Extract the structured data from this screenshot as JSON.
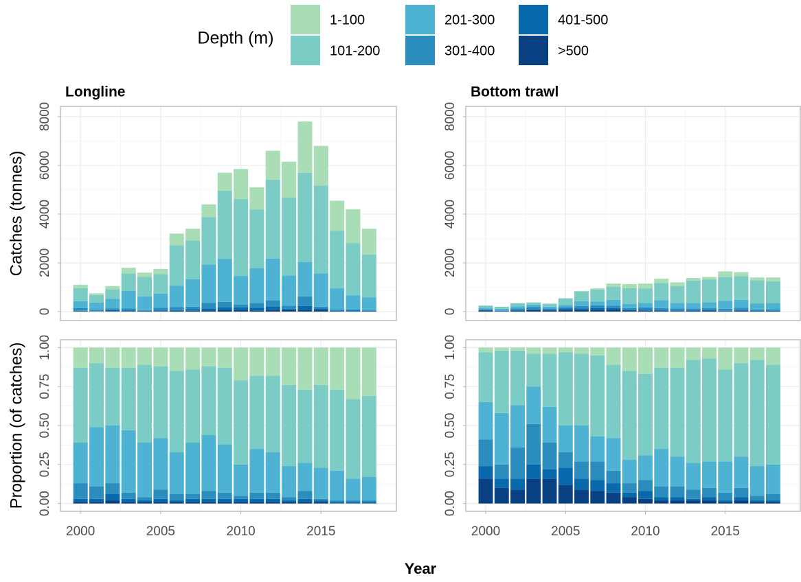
{
  "chart_data": {
    "type": "bar",
    "stacked": true,
    "legend_title": "Depth (m)",
    "x_label": "Year",
    "x": [
      2000,
      2001,
      2002,
      2003,
      2004,
      2005,
      2006,
      2007,
      2008,
      2009,
      2010,
      2011,
      2012,
      2013,
      2014,
      2015,
      2016,
      2017,
      2018
    ],
    "xlim": [
      1998.75,
      2019.7
    ],
    "xticks": [
      2000,
      2005,
      2010,
      2015
    ],
    "grid": true,
    "series": [
      {
        "name": "1-100",
        "color": "#a8ddb5"
      },
      {
        "name": "101-200",
        "color": "#7bccc4"
      },
      {
        "name": "201-300",
        "color": "#4eb3d3"
      },
      {
        "name": "301-400",
        "color": "#2b8cbe"
      },
      {
        "name": "401-500",
        "color": "#0868ac"
      },
      {
        "name": ">500",
        "color": "#084081"
      }
    ],
    "facets": [
      {
        "title": "Longline"
      },
      {
        "title": "Bottom trawl"
      }
    ],
    "rows": [
      {
        "y_label": "Catches (tonnes)",
        "ylim": [
          -366,
          8420
        ],
        "yticks": [
          0,
          2000,
          4000,
          6000,
          8000
        ],
        "values": [
          [
            [
              143,
              75,
              137,
              234,
              176,
              210,
              480,
              476,
              528,
              741,
              1229,
              918,
              1188,
              1476,
              2106,
              1632,
              1229,
              1386,
              1054
            ],
            [
              528,
              308,
              388,
              720,
              800,
              805,
              1664,
              1598,
              1936,
              2793,
              3159,
              2397,
              3234,
              3198,
              3666,
              3604,
              2366,
              2142,
              1768
            ],
            [
              286,
              285,
              388,
              720,
              560,
              578,
              864,
              1122,
              1584,
              1767,
              1170,
              1428,
              1716,
              1230,
              1404,
              1360,
              864,
              588,
              510
            ],
            [
              110,
              60,
              74,
              72,
              32,
              105,
              128,
              102,
              220,
              228,
              117,
              204,
              264,
              123,
              390,
              68,
              46,
              42,
              34
            ],
            [
              22,
              15,
              42,
              36,
              16,
              35,
              32,
              68,
              88,
              114,
              117,
              102,
              132,
              62,
              156,
              68,
              45,
              42,
              34
            ],
            [
              11,
              7,
              21,
              18,
              16,
              17,
              32,
              34,
              44,
              57,
              58,
              51,
              66,
              61,
              78,
              68,
              0,
              0,
              0
            ]
          ],
          [
            [
              8,
              4,
              7,
              15,
              13,
              16,
              34,
              48,
              126,
              170,
              196,
              176,
              156,
              110,
              99,
              231,
              162,
              112,
              154
            ],
            [
              80,
              80,
              122,
              80,
              112,
              259,
              391,
              494,
              541,
              644,
              598,
              702,
              684,
              911,
              937,
              973,
              972,
              952,
              896
            ],
            [
              60,
              66,
              95,
              91,
              76,
              94,
              196,
              152,
              241,
              170,
              184,
              324,
              228,
              235,
              241,
              330,
              324,
              266,
              266
            ],
            [
              42,
              18,
              70,
              99,
              56,
              55,
              93,
              114,
              92,
              68,
              80,
              94,
              84,
              83,
              85,
              83,
              97,
              42,
              56
            ],
            [
              20,
              12,
              25,
              34,
              20,
              60,
              60,
              66,
              69,
              34,
              58,
              27,
              24,
              14,
              29,
              17,
              33,
              14,
              14
            ],
            [
              40,
              20,
              31,
              61,
              53,
              66,
              76,
              76,
              81,
              44,
              34,
              27,
              24,
              27,
              29,
              16,
              32,
              14,
              14
            ]
          ]
        ]
      },
      {
        "y_label": "Proportion (of catches)",
        "ylim": [
          -0.05,
          1.05
        ],
        "yticks": [
          {
            "value": 0,
            "label": "0.00"
          },
          {
            "value": 0.25,
            "label": "0.25"
          },
          {
            "value": 0.5,
            "label": "0.50"
          },
          {
            "value": 0.75,
            "label": "0.75"
          },
          {
            "value": 1,
            "label": "1.00"
          }
        ],
        "values": [
          [
            [
              0.13,
              0.1,
              0.13,
              0.13,
              0.11,
              0.12,
              0.15,
              0.14,
              0.12,
              0.13,
              0.21,
              0.18,
              0.18,
              0.24,
              0.27,
              0.24,
              0.27,
              0.33,
              0.31
            ],
            [
              0.48,
              0.41,
              0.37,
              0.4,
              0.5,
              0.46,
              0.52,
              0.47,
              0.44,
              0.49,
              0.54,
              0.47,
              0.49,
              0.52,
              0.47,
              0.53,
              0.52,
              0.51,
              0.52
            ],
            [
              0.26,
              0.38,
              0.37,
              0.4,
              0.35,
              0.33,
              0.27,
              0.33,
              0.36,
              0.31,
              0.2,
              0.28,
              0.26,
              0.2,
              0.18,
              0.2,
              0.19,
              0.14,
              0.15
            ],
            [
              0.1,
              0.08,
              0.07,
              0.04,
              0.02,
              0.06,
              0.04,
              0.03,
              0.05,
              0.04,
              0.02,
              0.04,
              0.04,
              0.02,
              0.05,
              0.01,
              0.01,
              0.01,
              0.01
            ],
            [
              0.02,
              0.02,
              0.04,
              0.02,
              0.01,
              0.02,
              0.01,
              0.02,
              0.02,
              0.02,
              0.02,
              0.02,
              0.02,
              0.01,
              0.02,
              0.01,
              0.01,
              0.01,
              0.01
            ],
            [
              0.01,
              0.01,
              0.02,
              0.01,
              0.01,
              0.01,
              0.01,
              0.01,
              0.01,
              0.01,
              0.01,
              0.01,
              0.01,
              0.01,
              0.01,
              0.01,
              0,
              0,
              0
            ]
          ],
          [
            [
              0.03,
              0.02,
              0.02,
              0.04,
              0.04,
              0.03,
              0.04,
              0.05,
              0.11,
              0.15,
              0.17,
              0.13,
              0.13,
              0.08,
              0.07,
              0.14,
              0.1,
              0.08,
              0.11
            ],
            [
              0.32,
              0.4,
              0.35,
              0.21,
              0.34,
              0.47,
              0.46,
              0.52,
              0.47,
              0.57,
              0.52,
              0.52,
              0.57,
              0.66,
              0.66,
              0.59,
              0.6,
              0.68,
              0.64
            ],
            [
              0.24,
              0.33,
              0.27,
              0.24,
              0.23,
              0.17,
              0.23,
              0.16,
              0.21,
              0.15,
              0.16,
              0.24,
              0.19,
              0.17,
              0.17,
              0.2,
              0.2,
              0.19,
              0.19
            ],
            [
              0.17,
              0.09,
              0.2,
              0.26,
              0.17,
              0.1,
              0.11,
              0.12,
              0.08,
              0.06,
              0.07,
              0.07,
              0.07,
              0.06,
              0.06,
              0.05,
              0.06,
              0.03,
              0.04
            ],
            [
              0.08,
              0.06,
              0.07,
              0.09,
              0.06,
              0.11,
              0.07,
              0.07,
              0.06,
              0.03,
              0.05,
              0.02,
              0.02,
              0.01,
              0.02,
              0.01,
              0.02,
              0.01,
              0.01
            ],
            [
              0.16,
              0.1,
              0.09,
              0.16,
              0.16,
              0.12,
              0.09,
              0.08,
              0.07,
              0.04,
              0.03,
              0.02,
              0.02,
              0.02,
              0.02,
              0.01,
              0.02,
              0.01,
              0.01
            ]
          ]
        ]
      }
    ]
  }
}
